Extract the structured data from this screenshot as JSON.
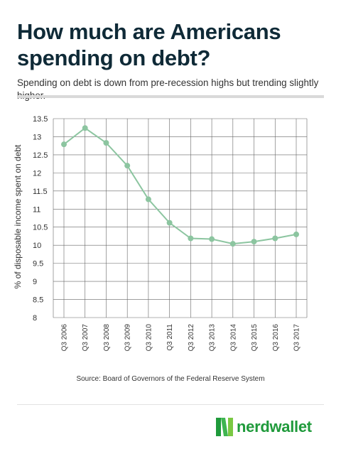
{
  "header": {
    "title": "How much are Americans spending on debt?",
    "subtitle": "Spending on debt is down from pre-recession highs but trending slightly higher."
  },
  "footer": {
    "source": "Source: Board of Governors of the Federal Reserve System",
    "brand": "nerdwallet"
  },
  "colors": {
    "line": "#8cc5a0",
    "title": "#0f2a37",
    "brand": "#1f9a3b",
    "grid": "#666666"
  },
  "chart_data": {
    "type": "line",
    "title": "",
    "xlabel": "",
    "ylabel": "% of disposable income spent on debt",
    "ylim": [
      8,
      13.5
    ],
    "yticks": [
      "13.5",
      "13",
      "12.5",
      "12",
      "11.5",
      "11",
      "10.5",
      "10",
      "9.5",
      "9",
      "8.5",
      "8"
    ],
    "grid": true,
    "categories": [
      "Q3 2006",
      "Q3 2007",
      "Q3 2008",
      "Q3 2009",
      "Q3 2010",
      "Q3 2011",
      "Q3 2012",
      "Q3 2013",
      "Q3 2014",
      "Q3 2015",
      "Q3 2016",
      "Q3 2017"
    ],
    "series": [
      {
        "values": [
          12.79,
          13.24,
          12.83,
          12.2,
          11.27,
          10.62,
          10.19,
          10.17,
          10.04,
          10.1,
          10.19,
          10.3
        ]
      }
    ]
  }
}
